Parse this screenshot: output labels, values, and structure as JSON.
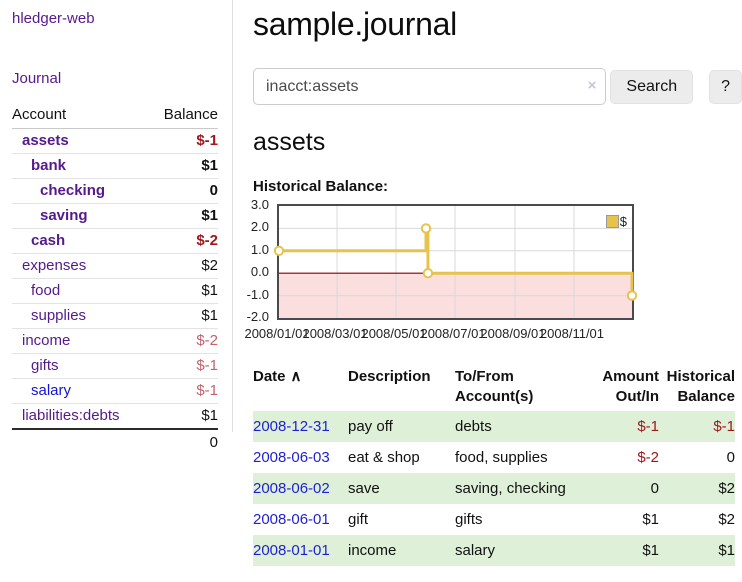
{
  "sidebar": {
    "app_title": "hledger-web",
    "journal_link": "Journal",
    "accounts": {
      "header_account": "Account",
      "header_balance": "Balance",
      "rows": [
        {
          "name": "assets",
          "balance": "$-1"
        },
        {
          "name": "bank",
          "balance": "$1"
        },
        {
          "name": "checking",
          "balance": "0"
        },
        {
          "name": "saving",
          "balance": "$1"
        },
        {
          "name": "cash",
          "balance": "$-2"
        },
        {
          "name": "expenses",
          "balance": "$2"
        },
        {
          "name": "food",
          "balance": "$1"
        },
        {
          "name": "supplies",
          "balance": "$1"
        },
        {
          "name": "income",
          "balance": "$-2"
        },
        {
          "name": "gifts",
          "balance": "$-1"
        },
        {
          "name": "salary",
          "balance": "$-1"
        },
        {
          "name": "liabilities:debts",
          "balance": "$1"
        }
      ],
      "total": "0"
    }
  },
  "main": {
    "title": "sample.journal",
    "search": {
      "value": "inacct:assets",
      "clear_icon": "×",
      "button_label": "Search",
      "help_label": "?"
    },
    "account_heading": "assets",
    "chart_title": "Historical Balance:"
  },
  "chart_data": {
    "type": "line",
    "step": true,
    "title": "Historical Balance:",
    "legend": {
      "label": "$",
      "position": "top-right"
    },
    "series": [
      {
        "name": "$",
        "color": "#e7c34d",
        "points": [
          {
            "date": "2008-01-01",
            "day": 0,
            "value": 1
          },
          {
            "date": "2008-06-01",
            "day": 152,
            "value": 2
          },
          {
            "date": "2008-06-03",
            "day": 154,
            "value": 0
          },
          {
            "date": "2008-12-31",
            "day": 365,
            "value": -1
          }
        ]
      }
    ],
    "x_axis": {
      "range_days": [
        0,
        365
      ],
      "ticks": [
        {
          "day": 0,
          "label": "2008/01/01"
        },
        {
          "day": 60,
          "label": "2008/03/01"
        },
        {
          "day": 121,
          "label": "2008/05/01"
        },
        {
          "day": 182,
          "label": "2008/07/01"
        },
        {
          "day": 244,
          "label": "2008/09/01"
        },
        {
          "day": 305,
          "label": "2008/11/01"
        }
      ]
    },
    "y_axis": {
      "range": [
        -2,
        3
      ],
      "ticks": [
        {
          "value": 3,
          "label": "3.0"
        },
        {
          "value": 2,
          "label": "2.0"
        },
        {
          "value": 1,
          "label": "1.0"
        },
        {
          "value": 0,
          "label": "0.0"
        },
        {
          "value": -1,
          "label": "-1.0"
        },
        {
          "value": -2,
          "label": "-2.0"
        }
      ]
    },
    "grid": true,
    "colors": {
      "negative_region": "#fbdede",
      "zero_line": "#8b0000",
      "gridline": "#d9d9d9",
      "series": "#e7c34d"
    }
  },
  "register": {
    "headers": {
      "date": "Date",
      "sort_icon": "∧",
      "description": "Description",
      "accounts": "To/From Account(s)",
      "amount": "Amount Out/In",
      "balance": "Historical Balance"
    },
    "rows": [
      {
        "date": "2008-12-31",
        "description": "pay off",
        "accounts": "debts",
        "amount": "$-1",
        "balance": "$-1"
      },
      {
        "date": "2008-06-03",
        "description": "eat & shop",
        "accounts": "food, supplies",
        "amount": "$-2",
        "balance": "0"
      },
      {
        "date": "2008-06-02",
        "description": "save",
        "accounts": "saving, checking",
        "amount": "0",
        "balance": "$2"
      },
      {
        "date": "2008-06-01",
        "description": "gift",
        "accounts": "gifts",
        "amount": "$1",
        "balance": "$2"
      },
      {
        "date": "2008-01-01",
        "description": "income",
        "accounts": "salary",
        "amount": "$1",
        "balance": "$1"
      }
    ]
  }
}
